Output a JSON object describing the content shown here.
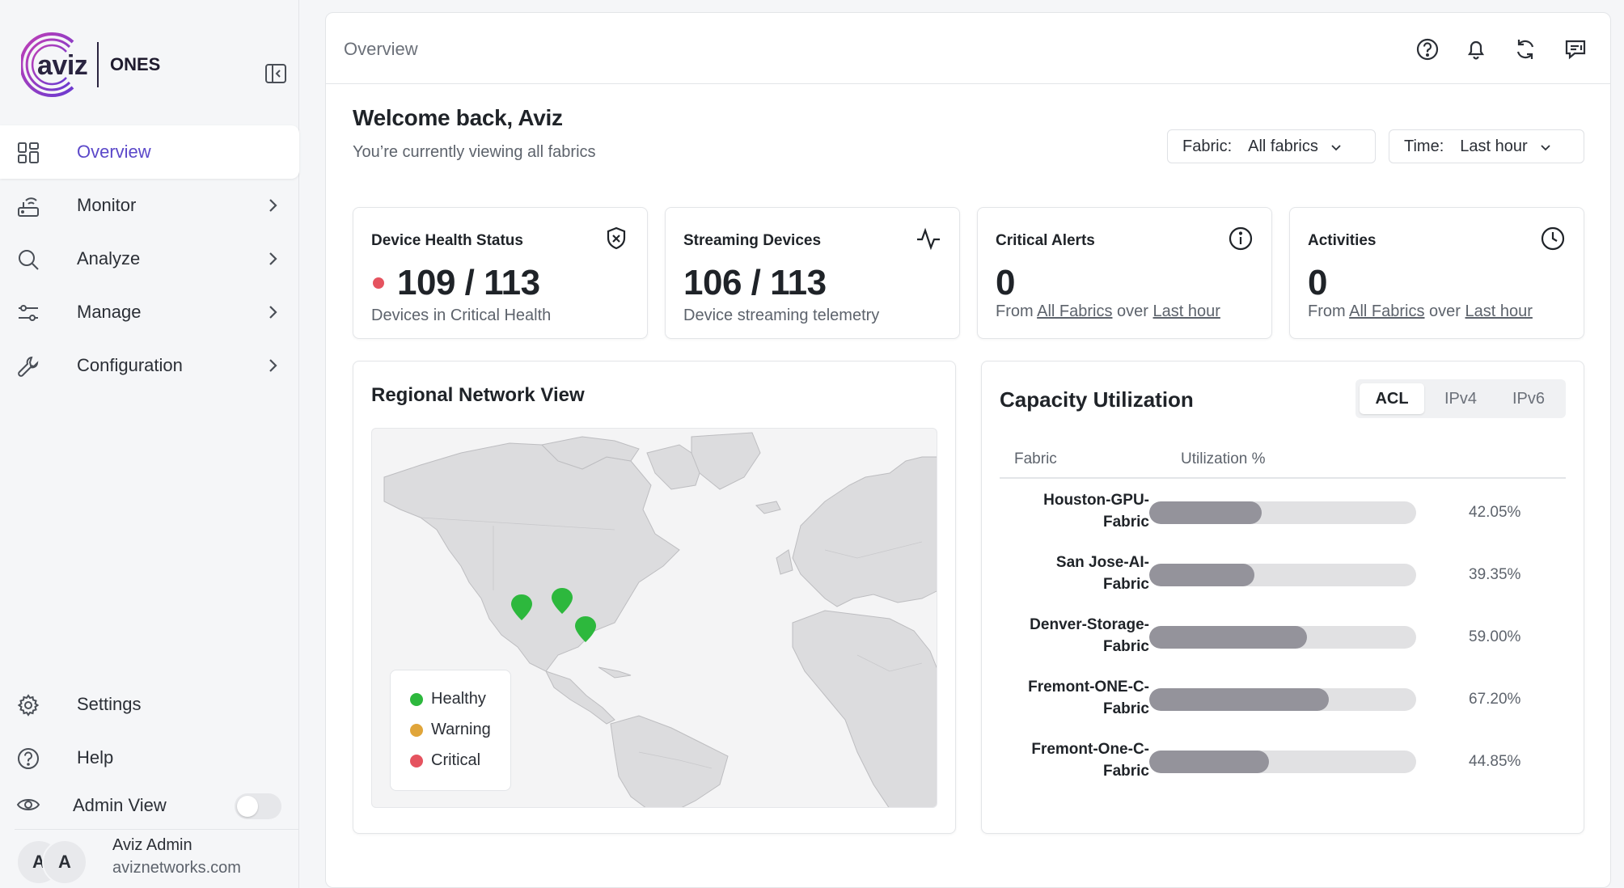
{
  "brand": {
    "logo_text": "aviz",
    "product": "ONES"
  },
  "sidebar": {
    "items": [
      {
        "label": "Overview",
        "icon": "grid-icon",
        "active": true
      },
      {
        "label": "Monitor",
        "icon": "router-icon"
      },
      {
        "label": "Analyze",
        "icon": "search-icon"
      },
      {
        "label": "Manage",
        "icon": "sliders-icon"
      },
      {
        "label": "Configuration",
        "icon": "wrench-icon"
      }
    ],
    "bottom": [
      {
        "label": "Settings",
        "icon": "gear-icon"
      },
      {
        "label": "Help",
        "icon": "help-icon"
      }
    ],
    "admin_view": {
      "label": "Admin View",
      "enabled": false
    },
    "user": {
      "initials_1": "A",
      "initials_2": "A",
      "name": "Aviz Admin",
      "domain": "aviznetworks.com"
    }
  },
  "header": {
    "breadcrumb": "Overview"
  },
  "welcome": {
    "title": "Welcome back, Aviz",
    "subtitle": "You’re currently viewing all fabrics"
  },
  "filters": {
    "fabric": {
      "label": "Fabric:",
      "value": "All fabrics"
    },
    "time": {
      "label": "Time:",
      "value": "Last hour"
    }
  },
  "cards": [
    {
      "title": "Device Health Status",
      "value": "109 / 113",
      "subtitle": "Devices in Critical Health",
      "icon": "shield-x-icon"
    },
    {
      "title": "Streaming Devices",
      "value": "106 / 113",
      "subtitle": "Device streaming telemetry",
      "icon": "activity-icon"
    },
    {
      "title": "Critical Alerts",
      "value": "0",
      "sub_prefix": "From",
      "sub_link1": "All Fabrics",
      "sub_mid": "over",
      "sub_link2": "Last hour",
      "icon": "info-icon"
    },
    {
      "title": "Activities",
      "value": "0",
      "sub_prefix": "From",
      "sub_link1": "All Fabrics",
      "sub_mid": "over",
      "sub_link2": "Last hour",
      "icon": "clock-icon"
    }
  ],
  "map": {
    "title": "Regional Network View",
    "legend": [
      {
        "label": "Healthy",
        "color": "#2db83d"
      },
      {
        "label": "Warning",
        "color": "#e0a53a"
      },
      {
        "label": "Critical",
        "color": "#e5535f"
      }
    ],
    "markers": [
      "healthy",
      "healthy",
      "healthy"
    ]
  },
  "capacity": {
    "title": "Capacity Utilization",
    "tabs": [
      "ACL",
      "IPv4",
      "IPv6"
    ],
    "active_tab": "ACL",
    "columns": [
      "Fabric",
      "Utilization %"
    ],
    "rows": [
      {
        "line1": "Houston-GPU-",
        "line2": "Fabric",
        "pct": 42.05,
        "label": "42.05%"
      },
      {
        "line1": "San Jose-AI-",
        "line2": "Fabric",
        "pct": 39.35,
        "label": "39.35%"
      },
      {
        "line1": "Denver-Storage-",
        "line2": "Fabric",
        "pct": 59.0,
        "label": "59.00%"
      },
      {
        "line1": "Fremont-ONE-C-",
        "line2": "Fabric",
        "pct": 67.2,
        "label": "67.20%"
      },
      {
        "line1": "Fremont-One-C-",
        "line2": "Fabric",
        "pct": 44.85,
        "label": "44.85%"
      }
    ]
  }
}
